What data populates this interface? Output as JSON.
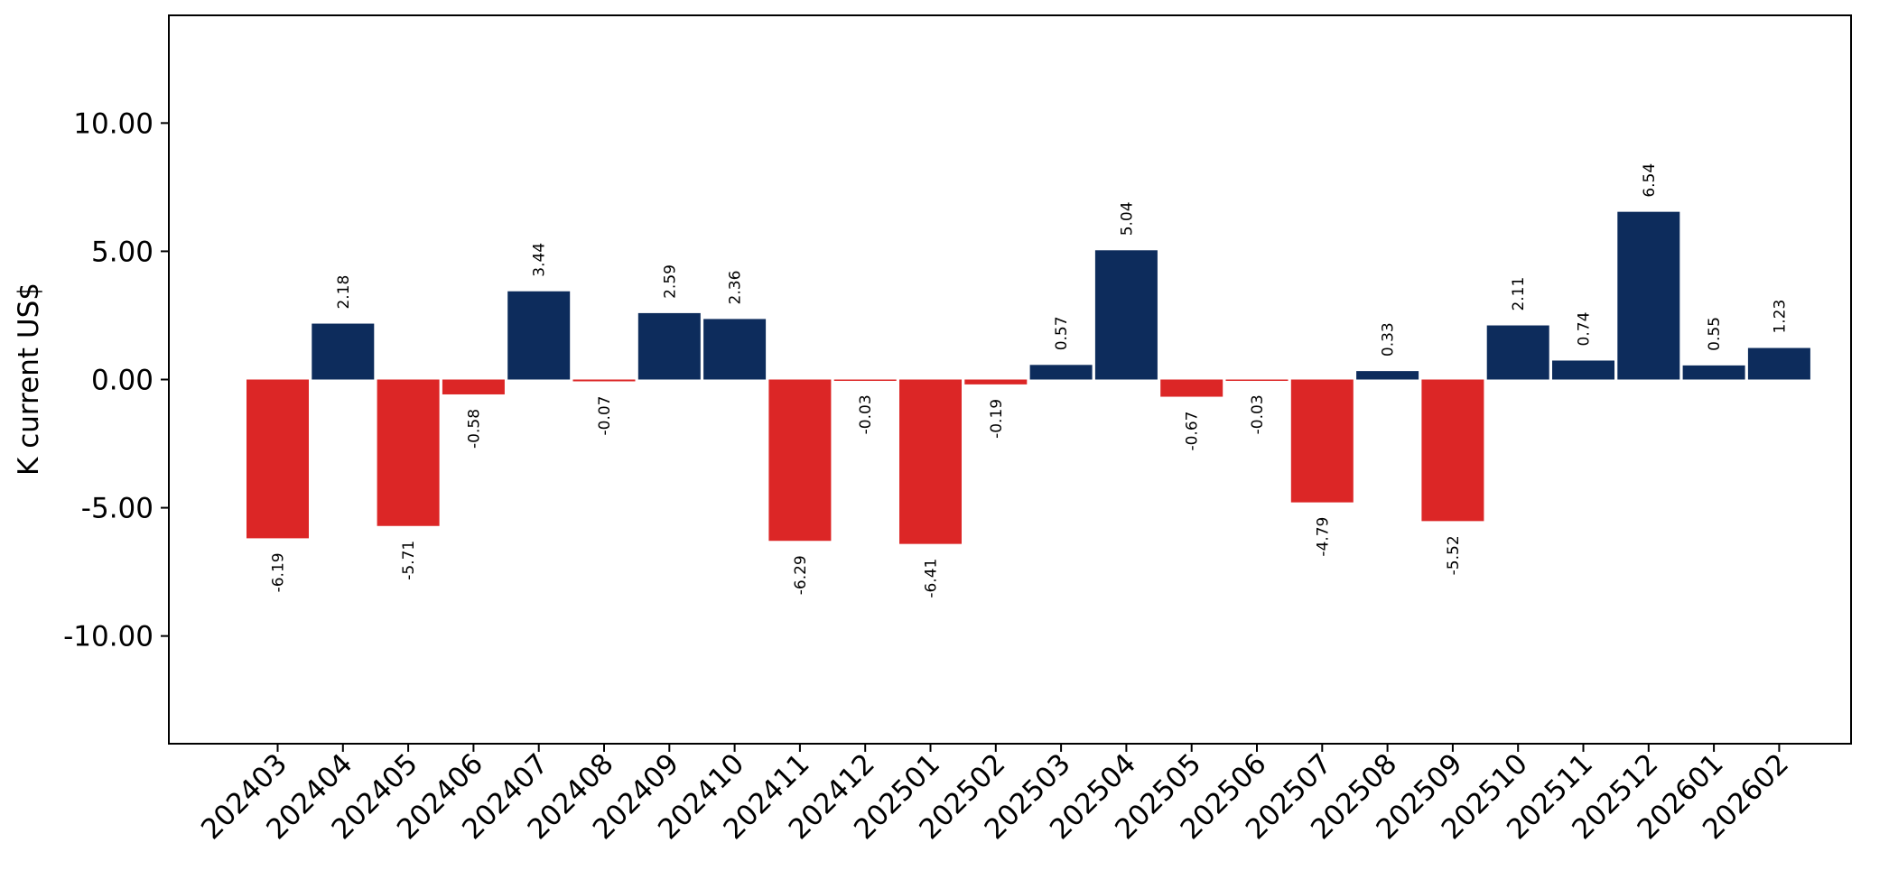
{
  "chart_data": {
    "type": "bar",
    "title": "",
    "xlabel": "",
    "ylabel": "K current US$",
    "ylim": [
      -14.2,
      14.2
    ],
    "yticks": [
      -10,
      -5,
      0,
      5,
      10
    ],
    "ytick_labels": [
      "-10.00",
      "-5.00",
      "0.00",
      "5.00",
      "10.00"
    ],
    "grid": false,
    "legend": "none",
    "positive_color": "#0d2c5c",
    "negative_color": "#dc2626",
    "categories": [
      "202403",
      "202404",
      "202405",
      "202406",
      "202407",
      "202408",
      "202409",
      "202410",
      "202411",
      "202412",
      "202501",
      "202502",
      "202503",
      "202504",
      "202505",
      "202506",
      "202507",
      "202508",
      "202509",
      "202510",
      "202511",
      "202512",
      "202601",
      "202602"
    ],
    "values": [
      -6.19,
      2.18,
      -5.71,
      -0.58,
      3.44,
      -0.07,
      2.59,
      2.36,
      -6.29,
      -0.03,
      -6.41,
      -0.19,
      0.57,
      5.04,
      -0.67,
      -0.03,
      -4.79,
      0.33,
      -5.52,
      2.11,
      0.74,
      6.54,
      0.55,
      1.23
    ],
    "data_labels": [
      "-6.19",
      "2.18",
      "-5.71",
      "-0.58",
      "3.44",
      "-0.07",
      "2.59",
      "2.36",
      "-6.29",
      "-0.03",
      "-6.41",
      "-0.19",
      "0.57",
      "5.04",
      "-0.67",
      "-0.03",
      "-4.79",
      "0.33",
      "-5.52",
      "2.11",
      "0.74",
      "6.54",
      "0.55",
      "1.23"
    ]
  }
}
